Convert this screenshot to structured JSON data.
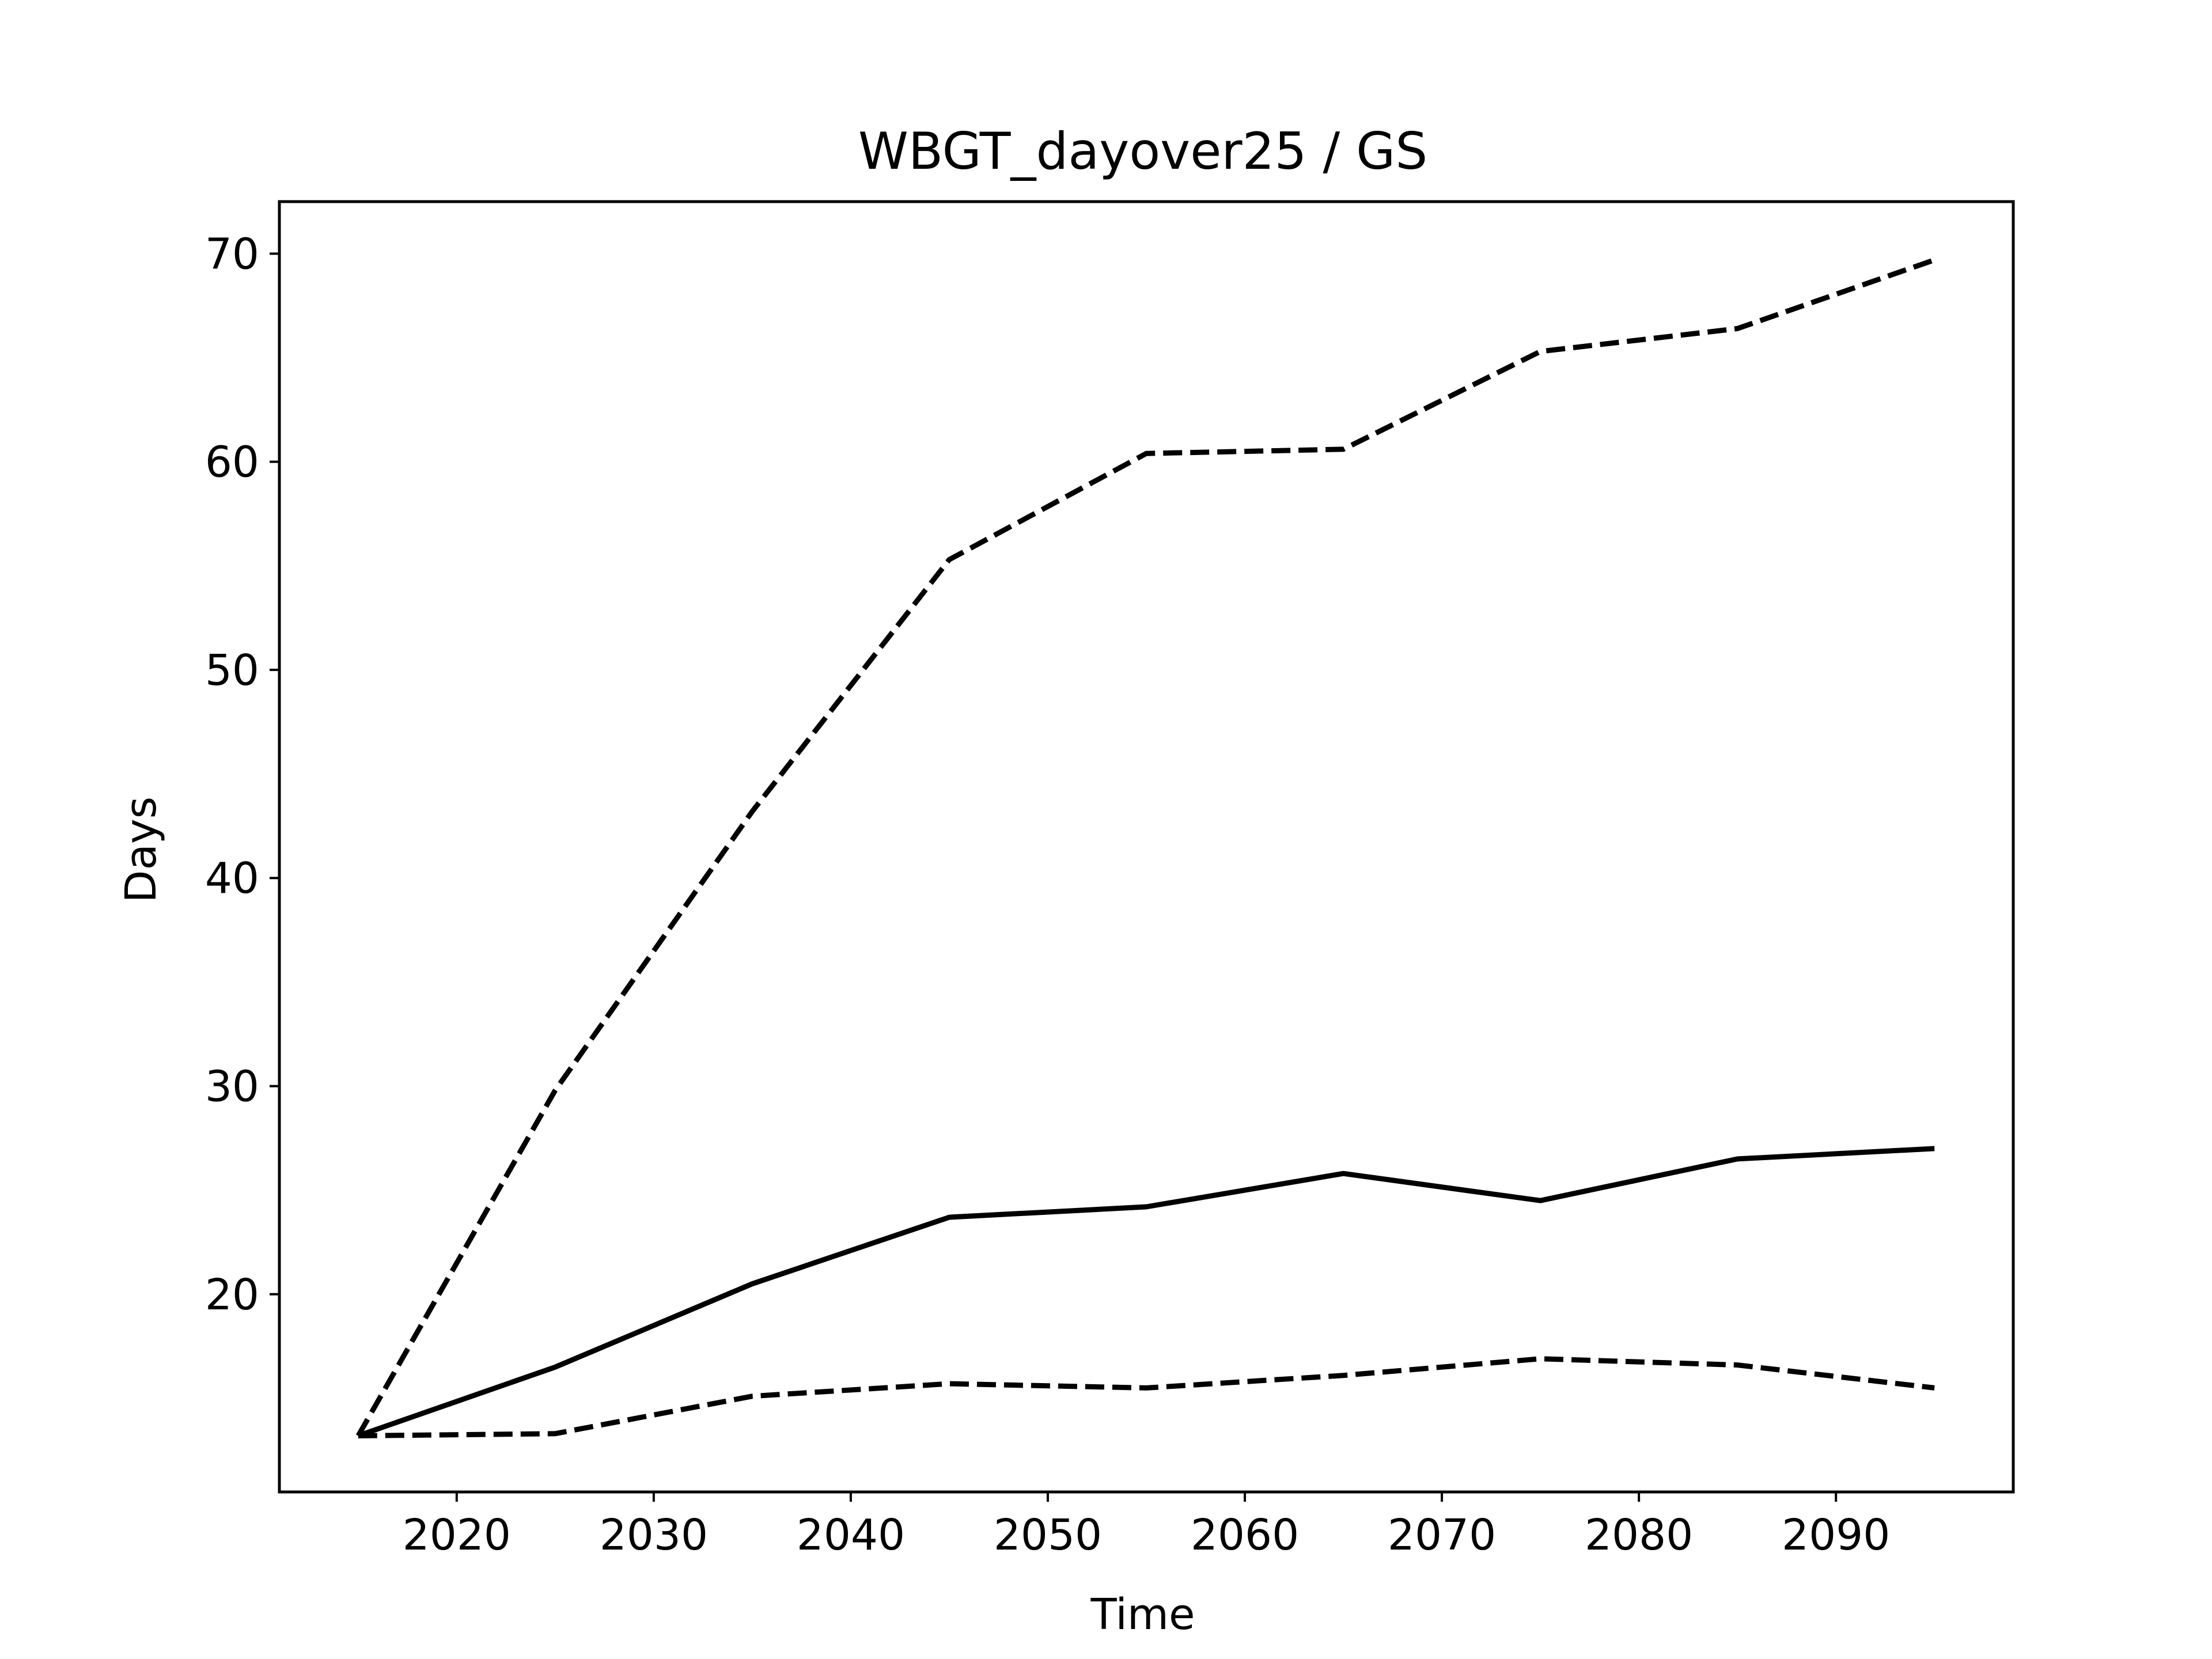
{
  "chart_data": {
    "type": "line",
    "title": "WBGT_dayover25 / GS",
    "xlabel": "Time",
    "ylabel": "Days",
    "xlim": [
      2011,
      2099
    ],
    "ylim": [
      10.5,
      72.5
    ],
    "xticks": [
      2020,
      2030,
      2040,
      2050,
      2060,
      2070,
      2080,
      2090
    ],
    "yticks": [
      20,
      30,
      40,
      50,
      60,
      70
    ],
    "grid": false,
    "x": [
      2015,
      2025,
      2035,
      2045,
      2055,
      2065,
      2075,
      2085,
      2095
    ],
    "series": [
      {
        "style": "dashed",
        "color": "#000000",
        "values": [
          13.2,
          29.8,
          43.2,
          55.3,
          60.4,
          60.6,
          65.3,
          66.4,
          69.7
        ]
      },
      {
        "style": "solid",
        "color": "#000000",
        "values": [
          13.2,
          16.5,
          20.5,
          23.7,
          24.2,
          25.8,
          24.5,
          26.5,
          27.0
        ]
      },
      {
        "style": "dashed",
        "color": "#000000",
        "values": [
          13.2,
          13.3,
          15.1,
          15.7,
          15.5,
          16.1,
          16.9,
          16.6,
          15.5
        ]
      }
    ]
  }
}
